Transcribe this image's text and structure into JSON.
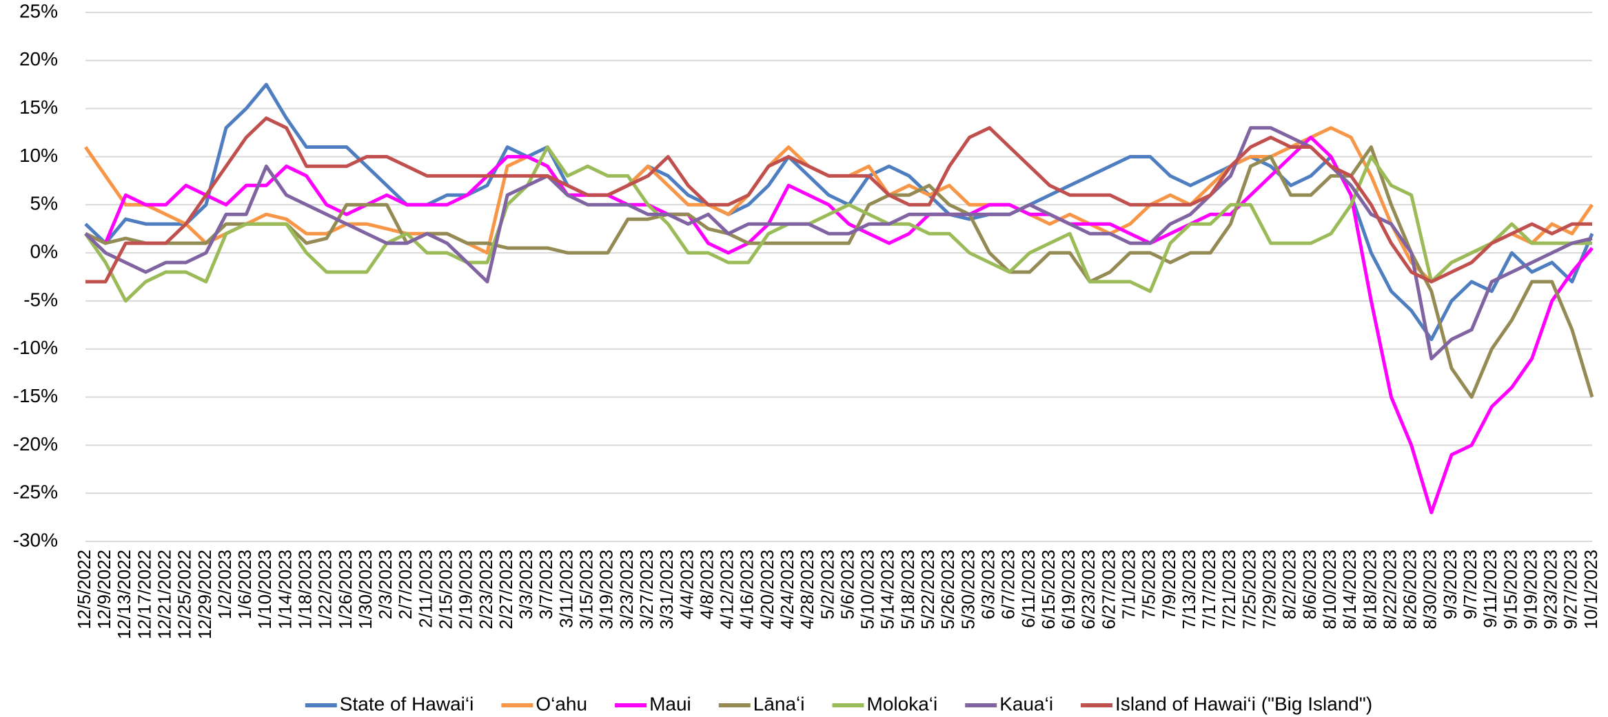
{
  "chart_data": {
    "type": "line",
    "categories": [
      "12/5/2022",
      "12/9/2022",
      "12/13/2022",
      "12/17/2022",
      "12/21/2022",
      "12/25/2022",
      "12/29/2022",
      "1/2/2023",
      "1/6/2023",
      "1/10/2023",
      "1/14/2023",
      "1/18/2023",
      "1/22/2023",
      "1/26/2023",
      "1/30/2023",
      "2/3/2023",
      "2/7/2023",
      "2/11/2023",
      "2/15/2023",
      "2/19/2023",
      "2/23/2023",
      "2/27/2023",
      "3/3/2023",
      "3/7/2023",
      "3/11/2023",
      "3/15/2023",
      "3/19/2023",
      "3/23/2023",
      "3/27/2023",
      "3/31/2023",
      "4/4/2023",
      "4/8/2023",
      "4/12/2023",
      "4/16/2023",
      "4/20/2023",
      "4/24/2023",
      "4/28/2023",
      "5/2/2023",
      "5/6/2023",
      "5/10/2023",
      "5/14/2023",
      "5/18/2023",
      "5/22/2023",
      "5/26/2023",
      "5/30/2023",
      "6/3/2023",
      "6/7/2023",
      "6/11/2023",
      "6/15/2023",
      "6/19/2023",
      "6/23/2023",
      "6/27/2023",
      "7/1/2023",
      "7/5/2023",
      "7/9/2023",
      "7/13/2023",
      "7/17/2023",
      "7/21/2023",
      "7/25/2023",
      "7/29/2023",
      "8/2/2023",
      "8/6/2023",
      "8/10/2023",
      "8/14/2023",
      "8/18/2023",
      "8/22/2023",
      "8/26/2023",
      "8/30/2023",
      "9/3/2023",
      "9/7/2023",
      "9/11/2023",
      "9/15/2023",
      "9/19/2023",
      "9/23/2023",
      "9/27/2023",
      "10/1/2023"
    ],
    "series": [
      {
        "name": "State of Hawai‘i",
        "color": "#4e7ebf",
        "values": [
          3,
          1,
          3.5,
          3,
          3,
          3,
          5,
          13,
          15,
          17.5,
          14,
          11,
          11,
          11,
          9,
          7,
          5,
          5,
          6,
          6,
          7,
          11,
          10,
          11,
          7,
          6,
          6,
          7,
          9,
          8,
          6,
          5,
          4,
          5,
          7,
          10,
          8,
          6,
          5,
          8,
          9,
          8,
          6,
          4,
          3.5,
          4,
          4,
          5,
          6,
          7,
          8,
          9,
          10,
          10,
          8,
          7,
          8,
          9,
          10,
          9,
          7,
          8,
          10,
          6,
          0,
          -4,
          -6,
          -9,
          -5,
          -3,
          -4,
          0,
          -2,
          -1,
          -3,
          2
        ]
      },
      {
        "name": "O‘ahu",
        "color": "#f79646",
        "values": [
          11,
          8,
          5,
          5,
          4,
          3,
          1,
          2,
          3,
          4,
          3.5,
          2,
          2,
          3,
          3,
          2.5,
          2,
          2,
          2,
          1,
          0,
          9,
          10,
          9,
          6,
          6,
          6,
          7,
          9,
          7,
          5,
          5,
          4,
          6,
          9,
          11,
          9,
          8,
          8,
          9,
          6,
          7,
          6,
          7,
          5,
          5,
          5,
          4,
          3,
          4,
          3,
          2,
          3,
          5,
          6,
          5,
          7,
          9,
          10,
          10,
          11,
          12,
          13,
          12,
          8,
          3,
          -1,
          -3,
          -1,
          0,
          1,
          2,
          1,
          3,
          2,
          5
        ]
      },
      {
        "name": "Maui",
        "color": "#ff00ff",
        "values": [
          2,
          1,
          6,
          5,
          5,
          7,
          6,
          5,
          7,
          7,
          9,
          8,
          5,
          4,
          5,
          6,
          5,
          5,
          5,
          6,
          8,
          10,
          10,
          9,
          6,
          6,
          6,
          5,
          5,
          4,
          4,
          1,
          0,
          1,
          3,
          7,
          6,
          5,
          3,
          2,
          1,
          2,
          4,
          4,
          4,
          5,
          5,
          4,
          4,
          3,
          3,
          3,
          2,
          1,
          2,
          3,
          4,
          4,
          6,
          8,
          10,
          12,
          10,
          6,
          -5,
          -15,
          -20,
          -27,
          -21,
          -20,
          -16,
          -14,
          -11,
          -5,
          -2,
          0.5
        ]
      },
      {
        "name": "Lānaʻi",
        "color": "#948a54",
        "values": [
          2,
          1,
          1.5,
          1,
          1,
          1,
          1,
          3,
          3,
          3,
          3,
          1,
          1.5,
          5,
          5,
          5,
          1,
          2,
          2,
          1,
          1,
          0.5,
          0.5,
          0.5,
          0,
          0,
          0,
          3.5,
          3.5,
          4,
          4,
          2.5,
          2,
          1,
          1,
          1,
          1,
          1,
          1,
          5,
          6,
          6,
          7,
          5,
          4,
          0,
          -2,
          -2,
          0,
          0,
          -3,
          -2,
          0,
          0,
          -1,
          0,
          0,
          3,
          9,
          10,
          6,
          6,
          8,
          8,
          11,
          5,
          0,
          -4,
          -12,
          -15,
          -10,
          -7,
          -3,
          -3,
          -8,
          -15
        ]
      },
      {
        "name": "Moloka‘i",
        "color": "#9bbb59",
        "values": [
          2,
          -1,
          -5,
          -3,
          -2,
          -2,
          -3,
          2,
          3,
          3,
          3,
          0,
          -2,
          -2,
          -2,
          1,
          2,
          0,
          0,
          -1,
          -1,
          5,
          7,
          11,
          8,
          9,
          8,
          8,
          5,
          3,
          0,
          0,
          -1,
          -1,
          2,
          3,
          3,
          4,
          5,
          4,
          3,
          3,
          2,
          2,
          0,
          -1,
          -2,
          0,
          1,
          2,
          -3,
          -3,
          -3,
          -4,
          1,
          3,
          3,
          5,
          5,
          1,
          1,
          1,
          2,
          5,
          10,
          7,
          6,
          -3,
          -1,
          0,
          1,
          3,
          1,
          1,
          1,
          1
        ]
      },
      {
        "name": "Kaua‘i",
        "color": "#8064a2",
        "values": [
          2,
          0,
          -1,
          -2,
          -1,
          -1,
          0,
          4,
          4,
          9,
          6,
          5,
          4,
          3,
          2,
          1,
          1,
          2,
          1,
          -1,
          -3,
          6,
          7,
          8,
          6,
          5,
          5,
          5,
          4,
          4,
          3,
          4,
          2,
          3,
          3,
          3,
          3,
          2,
          2,
          3,
          3,
          4,
          4,
          4,
          4,
          4,
          4,
          5,
          4,
          3,
          2,
          2,
          1,
          1,
          3,
          4,
          6,
          8,
          13,
          13,
          12,
          11,
          9,
          7,
          4,
          3,
          0,
          -11,
          -9,
          -8,
          -3,
          -2,
          -1,
          0,
          1,
          1.5
        ]
      },
      {
        "name": "Island of Hawai‘i (\"Big Island\")",
        "color": "#c0504d",
        "values": [
          -3,
          -3,
          1,
          1,
          1,
          3,
          6,
          9,
          12,
          14,
          13,
          9,
          9,
          9,
          10,
          10,
          9,
          8,
          8,
          8,
          8,
          8,
          8,
          8,
          7,
          6,
          6,
          7,
          8,
          10,
          7,
          5,
          5,
          6,
          9,
          10,
          9,
          8,
          8,
          8,
          6,
          5,
          5,
          9,
          12,
          13,
          11,
          9,
          7,
          6,
          6,
          6,
          5,
          5,
          5,
          5,
          6,
          9,
          11,
          12,
          11,
          11,
          9,
          8,
          5,
          1,
          -2,
          -3,
          -2,
          -1,
          1,
          2,
          3,
          2,
          3,
          3
        ]
      }
    ],
    "ylim": [
      -30,
      25
    ],
    "yticks": [
      {
        "value": -30,
        "label": "-30%"
      },
      {
        "value": -25,
        "label": "-25%"
      },
      {
        "value": -20,
        "label": "-20%"
      },
      {
        "value": -15,
        "label": "-15%"
      },
      {
        "value": -10,
        "label": "-10%"
      },
      {
        "value": -5,
        "label": "-5%"
      },
      {
        "value": 0,
        "label": "0%"
      },
      {
        "value": 5,
        "label": "5%"
      },
      {
        "value": 10,
        "label": "10%"
      },
      {
        "value": 15,
        "label": "15%"
      },
      {
        "value": 20,
        "label": "20%"
      },
      {
        "value": 25,
        "label": "25%"
      }
    ],
    "grid": true,
    "legend": "bottom"
  }
}
